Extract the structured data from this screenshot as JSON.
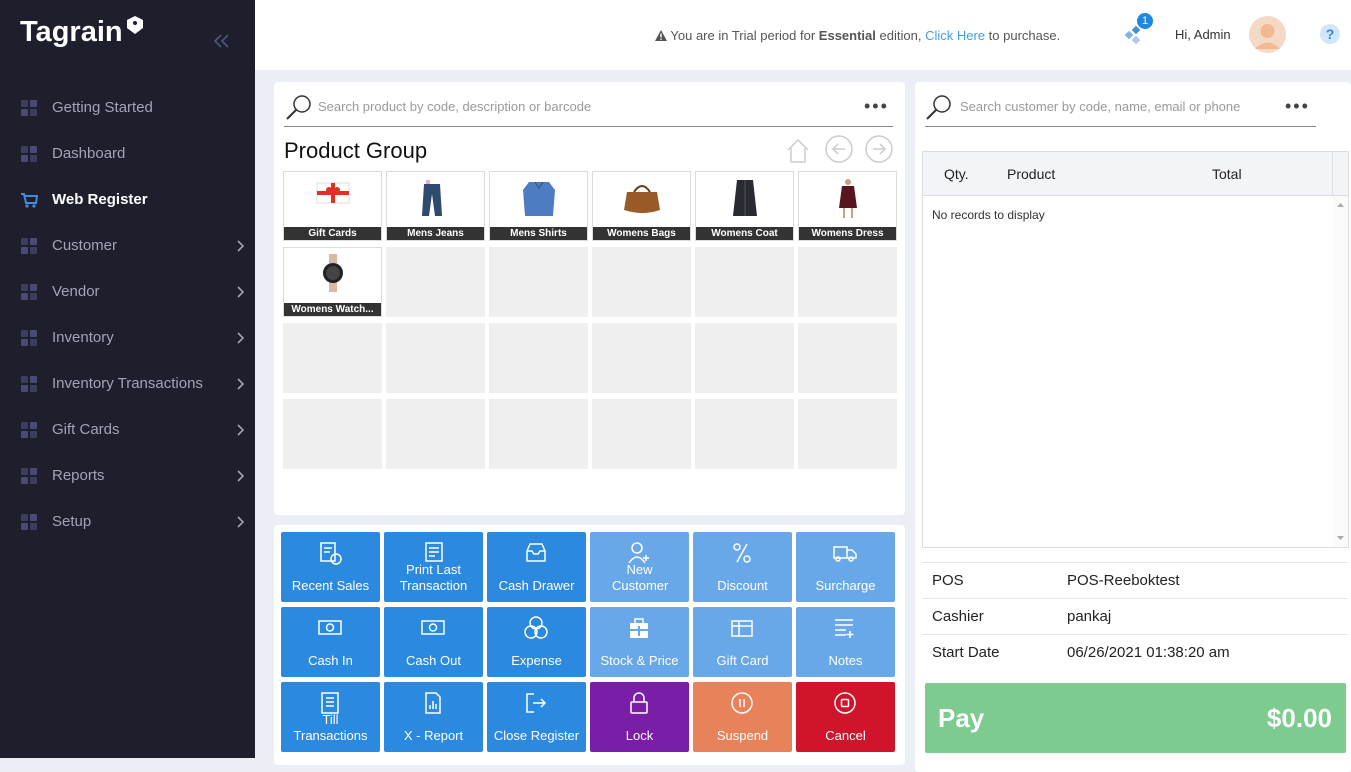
{
  "sidebar": {
    "logo": "Tagrain",
    "menu": [
      "Getting Started",
      "Dashboard",
      "Web Register",
      "Customer",
      "Vendor",
      "Inventory",
      "Inventory Transactions",
      "Gift Cards",
      "Reports",
      "Setup"
    ]
  },
  "header": {
    "trial_before": "You are in Trial period for",
    "edition": "Essential",
    "trial_middle": "edition,",
    "link": "Click Here",
    "trial_after": "to purchase.",
    "notifications": 1,
    "greeting": "Hi, Admin",
    "help": "?"
  },
  "product_panel": {
    "search_placeholder": "Search product by code, description or barcode",
    "title": "Product Group",
    "products": [
      "Gift Cards",
      "Mens Jeans",
      "Mens Shirts",
      "Womens Bags",
      "Womens Coat",
      "Womens Dress",
      "Womens Watch..."
    ]
  },
  "actions": [
    [
      "Recent Sales",
      "Print Last Transaction",
      "Cash Drawer",
      "New Customer",
      "Discount",
      "Surcharge"
    ],
    [
      "Cash In",
      "Cash Out",
      "Expense",
      "Stock & Price",
      "Gift Card",
      "Notes"
    ],
    [
      "Till Transactions",
      "X - Report",
      "Close Register",
      "Lock",
      "Suspend",
      "Cancel"
    ]
  ],
  "cart": {
    "search_placeholder": "Search customer by code, name, email or phone",
    "columns": [
      "Qty.",
      "Product",
      "Total"
    ],
    "empty_message": "No records to display",
    "details": [
      {
        "label": "POS",
        "value": "POS-Reeboktest"
      },
      {
        "label": "Cashier",
        "value": "pankaj"
      },
      {
        "label": "Start Date",
        "value": "06/26/2021 01:38:20 am"
      }
    ],
    "pay_label": "Pay",
    "total": "$0.00"
  }
}
